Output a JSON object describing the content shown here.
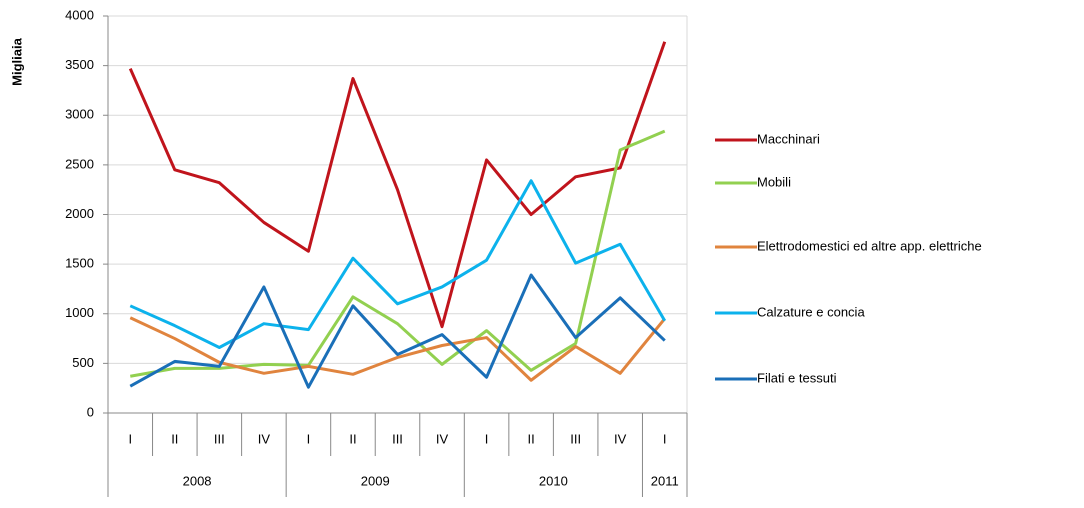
{
  "chart_data": {
    "type": "line",
    "y_label": "Migliaia",
    "categories": [
      "I",
      "II",
      "III",
      "IV",
      "I",
      "II",
      "III",
      "IV",
      "I",
      "II",
      "III",
      "IV",
      "I"
    ],
    "category_years": [
      "2008",
      null,
      null,
      null,
      "2009",
      null,
      null,
      null,
      "2010",
      null,
      null,
      null,
      "2011"
    ],
    "ylim": [
      0,
      4000
    ],
    "yticks": [
      0,
      500,
      1000,
      1500,
      2000,
      2500,
      3000,
      3500,
      4000
    ],
    "grid": true,
    "legend": "right",
    "series": [
      {
        "name": "Macchinari",
        "color": "#c0141c",
        "values": [
          3470,
          2450,
          2320,
          1920,
          1630,
          3370,
          2250,
          870,
          2550,
          2000,
          2380,
          2470,
          3740
        ]
      },
      {
        "name": "Mobili",
        "color": "#92d050",
        "values": [
          370,
          450,
          450,
          490,
          480,
          1170,
          900,
          490,
          830,
          430,
          700,
          2650,
          2840
        ]
      },
      {
        "name": "Elettrodomestici ed altre app. elettriche",
        "color": "#e0843e",
        "values": [
          960,
          750,
          510,
          400,
          470,
          390,
          560,
          680,
          760,
          330,
          670,
          400,
          950
        ]
      },
      {
        "name": "Calzature  e concia",
        "color": "#0cb2ec",
        "values": [
          1080,
          880,
          660,
          900,
          840,
          1560,
          1100,
          1270,
          1540,
          2340,
          1510,
          1700,
          930
        ]
      },
      {
        "name": "Filati e tessuti",
        "color": "#1a6fb8",
        "values": [
          270,
          520,
          470,
          1270,
          260,
          1080,
          590,
          790,
          360,
          1390,
          760,
          1160,
          730
        ]
      }
    ]
  }
}
